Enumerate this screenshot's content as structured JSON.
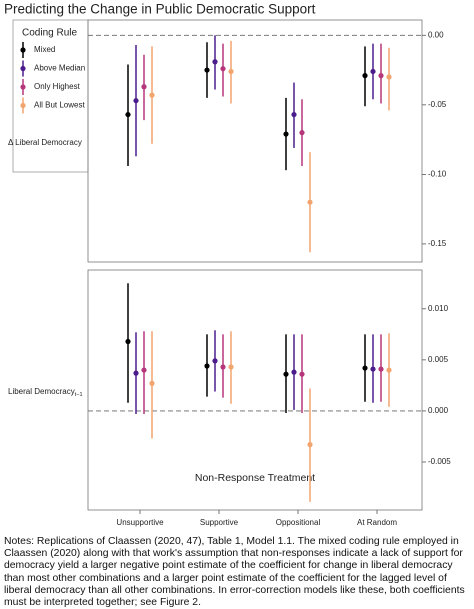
{
  "chart_data": {
    "type": "pointrange",
    "title": "Predicting the Change in Public Democratic Support",
    "x_label": "Non-Response Treatment",
    "categories": [
      "Unsupportive",
      "Supportive",
      "Oppositional",
      "At Random"
    ],
    "legend_title": "Coding Rule",
    "series": [
      {
        "name": "Mixed",
        "color": "#000000"
      },
      {
        "name": "Above Median",
        "color": "#4b1d8c"
      },
      {
        "name": "Only Highest",
        "color": "#b5367a"
      },
      {
        "name": "All But Lowest",
        "color": "#f2a46e"
      }
    ],
    "panels": [
      {
        "label": "Δ Liberal Democracy",
        "ylim": [
          -0.163,
          0.011
        ],
        "yticks": [
          {
            "value": 0,
            "label": "0.00"
          },
          -0.05,
          {
            "value": -0.1,
            "label": "-0.10"
          },
          {
            "value": -0.15,
            "label": "-0.15"
          }
        ],
        "reference_line": 0,
        "series": [
          {
            "values": [
              -0.057,
              -0.025,
              -0.071,
              -0.029
            ],
            "lower": [
              -0.094,
              -0.045,
              -0.097,
              -0.051
            ],
            "upper": [
              -0.021,
              -0.005,
              -0.045,
              -0.008
            ]
          },
          {
            "values": [
              -0.047,
              -0.019,
              -0.057,
              -0.026
            ],
            "lower": [
              -0.087,
              -0.039,
              -0.081,
              -0.046
            ],
            "upper": [
              -0.007,
              0.0,
              -0.034,
              -0.006
            ]
          },
          {
            "values": [
              -0.037,
              -0.024,
              -0.07,
              -0.029
            ],
            "lower": [
              -0.061,
              -0.044,
              -0.094,
              -0.049
            ],
            "upper": [
              -0.014,
              -0.006,
              -0.046,
              -0.006
            ]
          },
          {
            "values": [
              -0.043,
              -0.026,
              -0.12,
              -0.03
            ],
            "lower": [
              -0.078,
              -0.049,
              -0.156,
              -0.054
            ],
            "upper": [
              -0.008,
              -0.004,
              -0.084,
              -0.009
            ]
          }
        ]
      },
      {
        "label": "Liberal Democracy",
        "label_sub": "t−1",
        "ylim": [
          -0.0097,
          0.0138
        ],
        "yticks": [
          {
            "value": 0.01,
            "label": "0.010"
          },
          0.005,
          {
            "value": 0,
            "label": "0.000"
          },
          -0.005
        ],
        "reference_line": 0,
        "series": [
          {
            "values": [
              0.0068,
              0.0044,
              0.0036,
              0.0042
            ],
            "lower": [
              0.0008,
              0.0014,
              -0.0002,
              0.0009
            ],
            "upper": [
              0.0125,
              0.0075,
              0.0075,
              0.0075
            ]
          },
          {
            "values": [
              0.0037,
              0.0049,
              0.0038,
              0.0041
            ],
            "lower": [
              -0.0003,
              0.0019,
              0.0001,
              0.0008
            ],
            "upper": [
              0.0077,
              0.0079,
              0.0075,
              0.0075
            ]
          },
          {
            "values": [
              0.004,
              0.0043,
              0.0036,
              0.0041
            ],
            "lower": [
              -0.0003,
              0.0013,
              -0.0002,
              0.0009
            ],
            "upper": [
              0.0078,
              0.0075,
              0.0075,
              0.0075
            ]
          },
          {
            "values": [
              0.0027,
              0.0043,
              -0.0033,
              0.004
            ],
            "lower": [
              -0.0027,
              0.0007,
              -0.0089,
              0.0004
            ],
            "upper": [
              0.0078,
              0.0078,
              0.0022,
              0.0076
            ]
          }
        ]
      }
    ]
  },
  "notes": "Notes: Replications of Claassen (2020, 47), Table 1, Model 1.1.  The mixed coding rule employed in Claassen (2020) along with that work's assumption that non-responses indicate a lack of support for democracy yield a larger negative point estimate of the coefficient for change in liberal democracy than most other combinations and a larger point estimate of the coefficient for the lagged level of liberal democracy than all other combinations.  In error-correction models like these, both coefficients must be interpreted together; see Figure 2."
}
